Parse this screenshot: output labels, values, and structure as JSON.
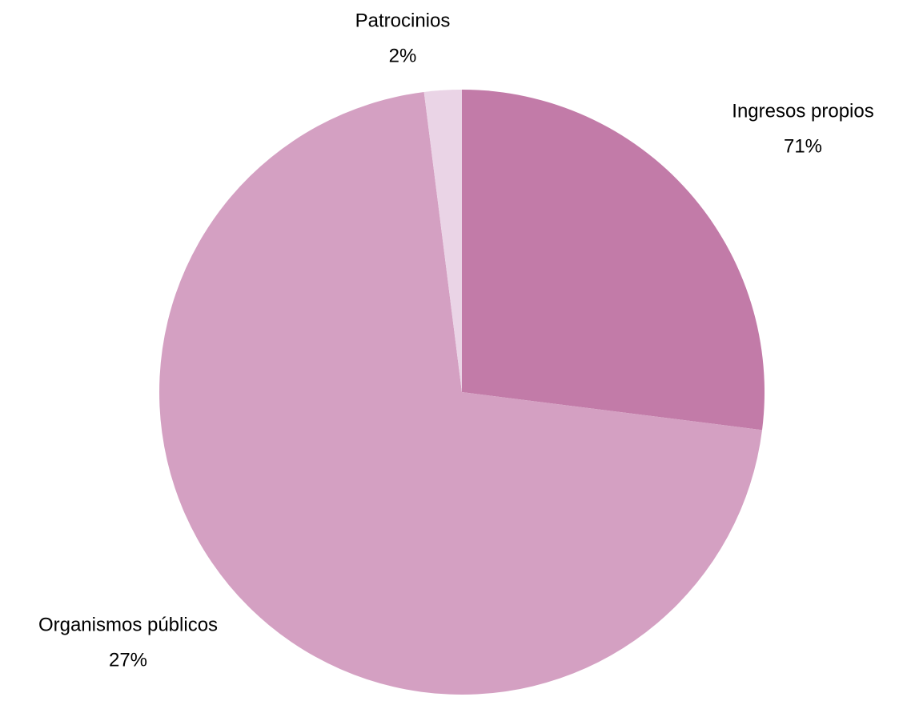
{
  "chart_data": {
    "type": "pie",
    "categories": [
      "Organismos públicos",
      "Ingresos propios",
      "Patrocinios"
    ],
    "values": [
      27,
      71,
      2
    ],
    "value_labels": [
      "27%",
      "71%",
      "2%"
    ],
    "colors": [
      "#c27ba8",
      "#d4a0c2",
      "#ead4e6"
    ]
  }
}
